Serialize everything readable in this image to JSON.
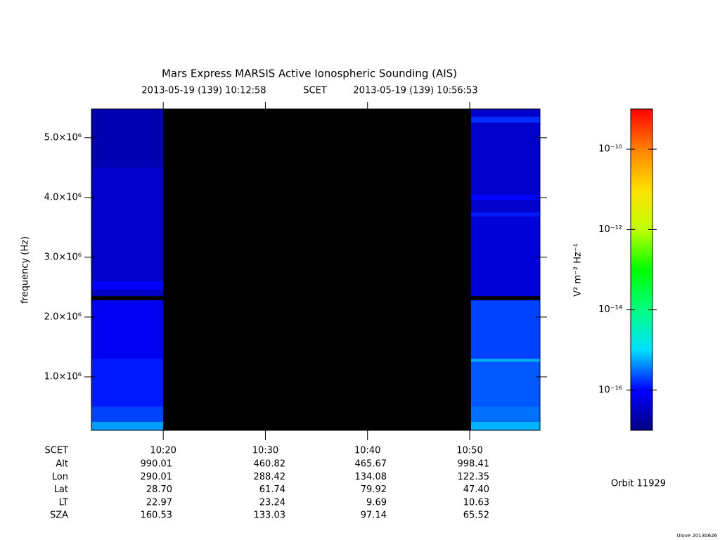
{
  "chart_data": {
    "type": "spectrogram",
    "title": "Mars Express MARSIS Active Ionospheric Sounding (AIS)",
    "subtitle": [
      "2013-05-19 (139) 10:12:58",
      "SCET",
      "2013-05-19 (139) 10:56:53"
    ],
    "y_label": "frequency (Hz)",
    "colorbar_label": "V² m⁻² Hz⁻¹",
    "orbit": "Orbit 11929",
    "footer": "Ulove 20130626",
    "xlim": [
      "2013-05-19T10:12:58",
      "2013-05-19T10:56:53"
    ],
    "xticks": [
      {
        "value": "2013-05-19T10:20:00",
        "label": "10:20"
      },
      {
        "value": "2013-05-19T10:30:00",
        "label": "10:30"
      },
      {
        "value": "2013-05-19T10:40:00",
        "label": "10:40"
      },
      {
        "value": "2013-05-19T10:50:00",
        "label": "10:50"
      }
    ],
    "ylim": [
      106000,
      5480000
    ],
    "yticks": [
      {
        "value": 1000000,
        "label": "1.0×10⁶"
      },
      {
        "value": 2000000,
        "label": "2.0×10⁶"
      },
      {
        "value": 3000000,
        "label": "3.0×10⁶"
      },
      {
        "value": 4000000,
        "label": "4.0×10⁶"
      },
      {
        "value": 5000000,
        "label": "5.0×10⁶"
      }
    ],
    "clim": [
      1e-17,
      1e-09
    ],
    "log_color": true,
    "cticks": [
      {
        "value": 1e-10,
        "label": "10⁻¹⁰"
      },
      {
        "value": 1e-12,
        "label": "10⁻¹²"
      },
      {
        "value": 1e-14,
        "label": "10⁻¹⁴"
      },
      {
        "value": 1e-16,
        "label": "10⁻¹⁶"
      }
    ],
    "colormap": [
      "#000080",
      "#0000ff",
      "#00e0ff",
      "#00ff80",
      "#00ff00",
      "#c0ff00",
      "#ffe000",
      "#ff8000",
      "#ff0000"
    ],
    "blocks": [
      {
        "start": "2013-05-19T10:12:58",
        "end": "2013-05-19T10:20:00",
        "bands": [
          {
            "fmin": 4500000,
            "fmax": 5480000,
            "intensity": 2.5e-17
          },
          {
            "fmin": 2600000,
            "fmax": 4500000,
            "intensity": 4e-17
          },
          {
            "fmin": 2450000,
            "fmax": 2600000,
            "intensity": 1e-16
          },
          {
            "fmin": 2350000,
            "fmax": 2450000,
            "intensity": 3.2e-17
          },
          {
            "fmin": 1300000,
            "fmax": 2280000,
            "intensity": 8e-17
          },
          {
            "fmin": 500000,
            "fmax": 1300000,
            "intensity": 1.3e-16
          },
          {
            "fmin": 250000,
            "fmax": 500000,
            "intensity": 2e-16
          },
          {
            "fmin": 106000,
            "fmax": 250000,
            "intensity": 5e-16
          }
        ]
      },
      {
        "start": "2013-05-19T10:50:08",
        "end": "2013-05-19T10:56:53",
        "bands": [
          {
            "fmin": 5350000,
            "fmax": 5480000,
            "intensity": 4e-17
          },
          {
            "fmin": 5250000,
            "fmax": 5350000,
            "intensity": 1.6e-16
          },
          {
            "fmin": 4050000,
            "fmax": 5250000,
            "intensity": 4e-17
          },
          {
            "fmin": 3950000,
            "fmax": 4050000,
            "intensity": 1e-16
          },
          {
            "fmin": 3750000,
            "fmax": 3950000,
            "intensity": 4e-17
          },
          {
            "fmin": 3680000,
            "fmax": 3750000,
            "intensity": 1.3e-16
          },
          {
            "fmin": 2350000,
            "fmax": 3680000,
            "intensity": 5e-17
          },
          {
            "fmin": 1300000,
            "fmax": 2280000,
            "intensity": 2e-16
          },
          {
            "fmin": 1250000,
            "fmax": 1300000,
            "intensity": 6.3e-16
          },
          {
            "fmin": 500000,
            "fmax": 1250000,
            "intensity": 2.5e-16
          },
          {
            "fmin": 250000,
            "fmax": 500000,
            "intensity": 3.2e-16
          },
          {
            "fmin": 106000,
            "fmax": 250000,
            "intensity": 6.3e-16
          }
        ]
      }
    ],
    "ephemeris": {
      "time_label": "SCET",
      "rows": [
        {
          "label": "Alt",
          "values": [
            "990.01",
            "460.82",
            "465.67",
            "998.41"
          ]
        },
        {
          "label": "Lon",
          "values": [
            "290.01",
            "288.42",
            "134.08",
            "122.35"
          ]
        },
        {
          "label": "Lat",
          "values": [
            "28.70",
            "61.74",
            "79.92",
            "47.40"
          ]
        },
        {
          "label": "LT",
          "values": [
            "22.97",
            "23.24",
            "9.69",
            "10.63"
          ]
        },
        {
          "label": "SZA",
          "values": [
            "160.53",
            "133.03",
            "97.14",
            "65.52"
          ]
        }
      ]
    }
  }
}
